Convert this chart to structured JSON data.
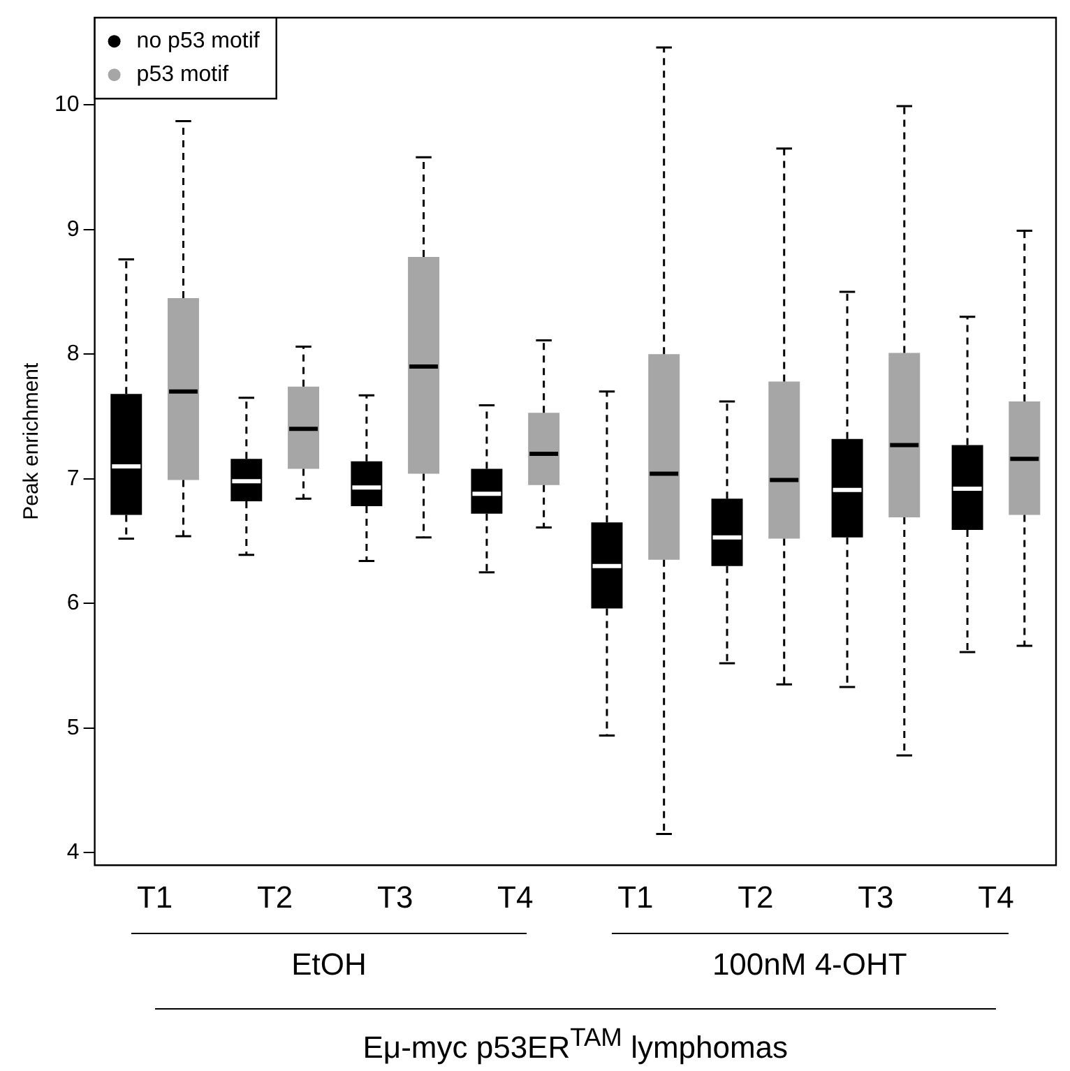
{
  "chart_data": {
    "type": "box",
    "ylabel": "Peak enrichment",
    "xlabel": "Eμ-myc p53ER$^{TAM}$ lymphomas",
    "annotations": [
      "EtOH",
      "100nM 4-OHT"
    ],
    "categories": [
      "T1",
      "T2",
      "T3",
      "T4",
      "T1",
      "T2",
      "T3",
      "T4"
    ],
    "ylim": [
      3.9,
      10.7
    ],
    "yticks": [
      4,
      5,
      6,
      7,
      8,
      9,
      10
    ],
    "grid": false,
    "legend": "top left",
    "series": [
      {
        "name": "no p53 motif",
        "color": "#000000",
        "boxes": [
          {
            "low": 6.52,
            "q1": 6.71,
            "median": 7.1,
            "q3": 7.68,
            "high": 8.76
          },
          {
            "low": 6.39,
            "q1": 6.82,
            "median": 6.98,
            "q3": 7.16,
            "high": 7.65
          },
          {
            "low": 6.34,
            "q1": 6.78,
            "median": 6.93,
            "q3": 7.14,
            "high": 7.67
          },
          {
            "low": 6.25,
            "q1": 6.72,
            "median": 6.88,
            "q3": 7.08,
            "high": 7.59
          },
          {
            "low": 4.94,
            "q1": 5.96,
            "median": 6.3,
            "q3": 6.65,
            "high": 7.7
          },
          {
            "low": 5.52,
            "q1": 6.3,
            "median": 6.53,
            "q3": 6.84,
            "high": 7.62
          },
          {
            "low": 5.33,
            "q1": 6.53,
            "median": 6.91,
            "q3": 7.32,
            "high": 8.5
          },
          {
            "low": 5.61,
            "q1": 6.59,
            "median": 6.92,
            "q3": 7.27,
            "high": 8.3
          }
        ]
      },
      {
        "name": "p53 motif",
        "color": "#a6a6a6",
        "boxes": [
          {
            "low": 6.54,
            "q1": 6.99,
            "median": 7.7,
            "q3": 8.45,
            "high": 9.87
          },
          {
            "low": 6.84,
            "q1": 7.08,
            "median": 7.4,
            "q3": 7.74,
            "high": 8.06
          },
          {
            "low": 6.53,
            "q1": 7.04,
            "median": 7.9,
            "q3": 8.78,
            "high": 9.58
          },
          {
            "low": 6.61,
            "q1": 6.95,
            "median": 7.2,
            "q3": 7.53,
            "high": 8.11
          },
          {
            "low": 4.15,
            "q1": 6.35,
            "median": 7.04,
            "q3": 8.0,
            "high": 10.46
          },
          {
            "low": 5.35,
            "q1": 6.52,
            "median": 6.99,
            "q3": 7.78,
            "high": 9.65
          },
          {
            "low": 4.78,
            "q1": 6.69,
            "median": 7.27,
            "q3": 8.01,
            "high": 9.99
          },
          {
            "low": 5.66,
            "q1": 6.71,
            "median": 7.16,
            "q3": 7.62,
            "high": 8.99
          }
        ]
      }
    ]
  }
}
